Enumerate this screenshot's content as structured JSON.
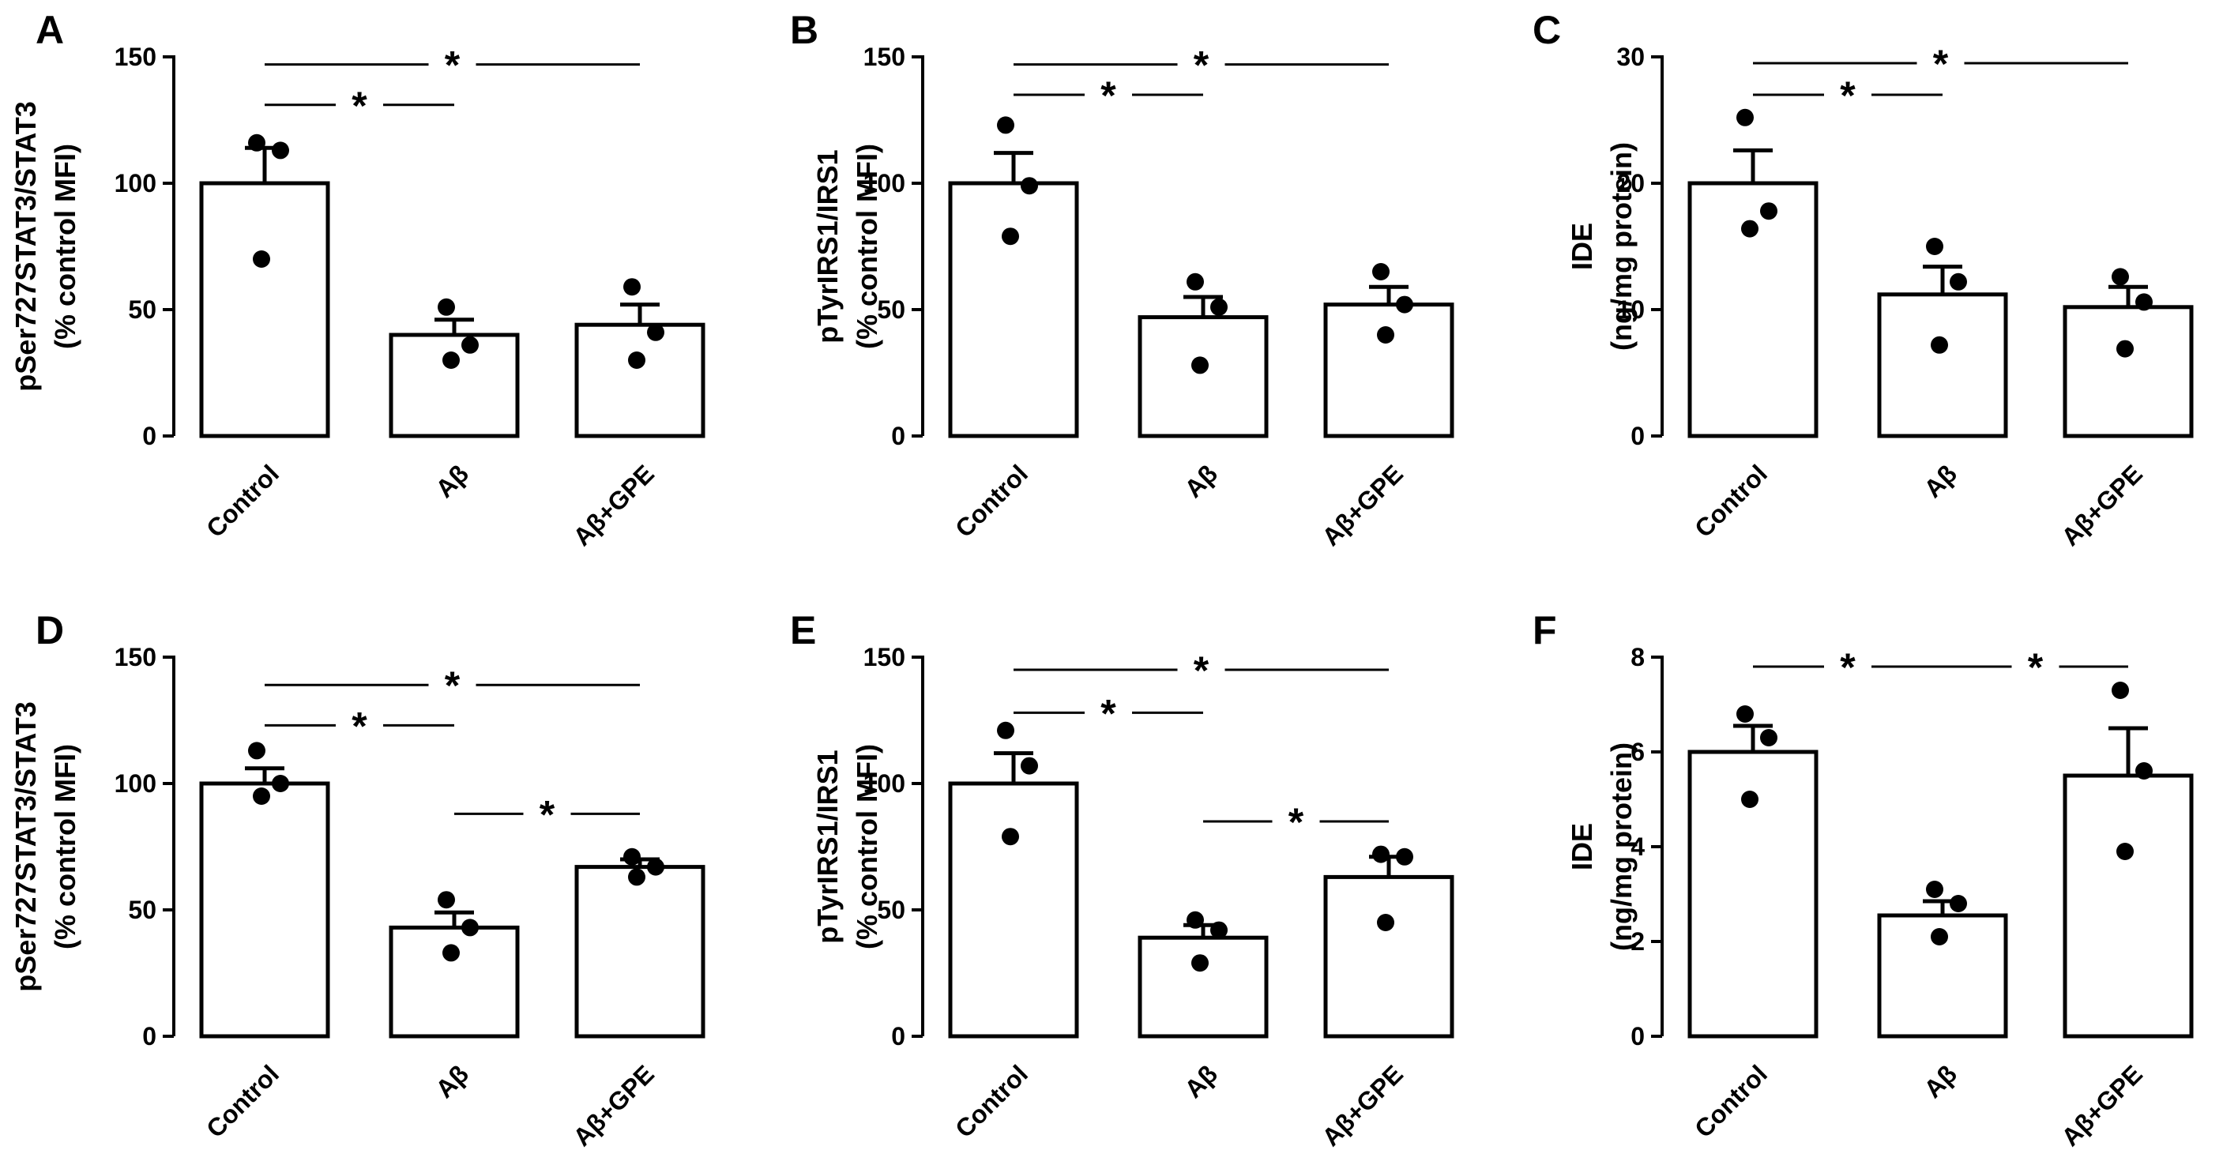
{
  "chart_data": [
    {
      "type": "bar",
      "panel": "A",
      "categories": [
        "Control",
        "Aβ",
        "Aβ+GPE"
      ],
      "values": [
        100,
        40,
        44
      ],
      "errors": [
        14,
        6,
        8
      ],
      "points": [
        [
          116,
          113,
          70
        ],
        [
          51,
          36,
          30
        ],
        [
          59,
          41,
          30
        ]
      ],
      "ylabel": [
        "pSer727STAT3/STAT3",
        "(% control MFI)"
      ],
      "ylim": [
        0,
        150
      ],
      "yticks": [
        "0",
        "50",
        "100",
        "150"
      ],
      "significance": [
        {
          "from": 0,
          "to": 2,
          "level": 147,
          "label": "*"
        },
        {
          "from": 0,
          "to": 1,
          "level": 131,
          "label": "*"
        }
      ]
    },
    {
      "type": "bar",
      "panel": "B",
      "categories": [
        "Control",
        "Aβ",
        "Aβ+GPE"
      ],
      "values": [
        100,
        47,
        52
      ],
      "errors": [
        12,
        8,
        7
      ],
      "points": [
        [
          123,
          99,
          79
        ],
        [
          61,
          51,
          28
        ],
        [
          65,
          52,
          40
        ]
      ],
      "ylabel": [
        "pTyrIRS1/IRS1",
        "(% control MFI)"
      ],
      "ylim": [
        0,
        150
      ],
      "yticks": [
        "0",
        "50",
        "100",
        "150"
      ],
      "significance": [
        {
          "from": 0,
          "to": 2,
          "level": 147,
          "label": "*"
        },
        {
          "from": 0,
          "to": 1,
          "level": 135,
          "label": "*"
        }
      ]
    },
    {
      "type": "bar",
      "panel": "C",
      "categories": [
        "Control",
        "Aβ",
        "Aβ+GPE"
      ],
      "values": [
        20,
        11.2,
        10.2
      ],
      "errors": [
        2.6,
        2.2,
        1.6
      ],
      "points": [
        [
          25.2,
          17.8,
          16.4
        ],
        [
          15,
          12.2,
          7.2
        ],
        [
          12.6,
          10.6,
          6.9
        ]
      ],
      "ylabel": [
        "IDE",
        "(ng/mg protein)"
      ],
      "ylim": [
        0,
        30
      ],
      "yticks": [
        "0",
        "10",
        "20",
        "30"
      ],
      "significance": [
        {
          "from": 0,
          "to": 2,
          "level": 29.5,
          "label": "*"
        },
        {
          "from": 0,
          "to": 1,
          "level": 27,
          "label": "*"
        }
      ]
    },
    {
      "type": "bar",
      "panel": "D",
      "categories": [
        "Control",
        "Aβ",
        "Aβ+GPE"
      ],
      "values": [
        100,
        43,
        67
      ],
      "errors": [
        6,
        6,
        3
      ],
      "points": [
        [
          113,
          100,
          95
        ],
        [
          54,
          43,
          33
        ],
        [
          71,
          67,
          63
        ]
      ],
      "ylabel": [
        "pSer727STAT3/STAT3",
        "(% control MFI)"
      ],
      "ylim": [
        0,
        150
      ],
      "yticks": [
        "0",
        "50",
        "100",
        "150"
      ],
      "significance": [
        {
          "from": 0,
          "to": 2,
          "level": 139,
          "label": "*"
        },
        {
          "from": 0,
          "to": 1,
          "level": 123,
          "label": "*"
        },
        {
          "from": 1,
          "to": 2,
          "level": 88,
          "label": "*"
        }
      ]
    },
    {
      "type": "bar",
      "panel": "E",
      "categories": [
        "Control",
        "Aβ",
        "Aβ+GPE"
      ],
      "values": [
        100,
        39,
        63
      ],
      "errors": [
        12,
        5,
        8
      ],
      "points": [
        [
          121,
          107,
          79
        ],
        [
          46,
          42,
          29
        ],
        [
          72,
          71,
          45
        ]
      ],
      "ylabel": [
        "pTyrIRS1/IRS1",
        "(% control MFI)"
      ],
      "ylim": [
        0,
        150
      ],
      "yticks": [
        "0",
        "50",
        "100",
        "150"
      ],
      "significance": [
        {
          "from": 0,
          "to": 2,
          "level": 145,
          "label": "*"
        },
        {
          "from": 0,
          "to": 1,
          "level": 128,
          "label": "*"
        },
        {
          "from": 1,
          "to": 2,
          "level": 85,
          "label": "*"
        }
      ]
    },
    {
      "type": "bar",
      "panel": "F",
      "categories": [
        "Control",
        "Aβ",
        "Aβ+GPE"
      ],
      "values": [
        6.0,
        2.55,
        5.5
      ],
      "errors": [
        0.55,
        0.3,
        1.0
      ],
      "points": [
        [
          6.8,
          6.3,
          5.0
        ],
        [
          3.1,
          2.8,
          2.1
        ],
        [
          7.3,
          5.6,
          3.9
        ]
      ],
      "ylabel": [
        "IDE",
        "(ng/mg protein)"
      ],
      "ylim": [
        0,
        8
      ],
      "yticks": [
        "0",
        "2",
        "4",
        "6",
        "8"
      ],
      "significance": [
        {
          "from": 0,
          "to": 1,
          "level": 7.8,
          "label": "*"
        },
        {
          "from": 1,
          "to": 2,
          "level": 7.8,
          "label": "*"
        }
      ]
    }
  ]
}
